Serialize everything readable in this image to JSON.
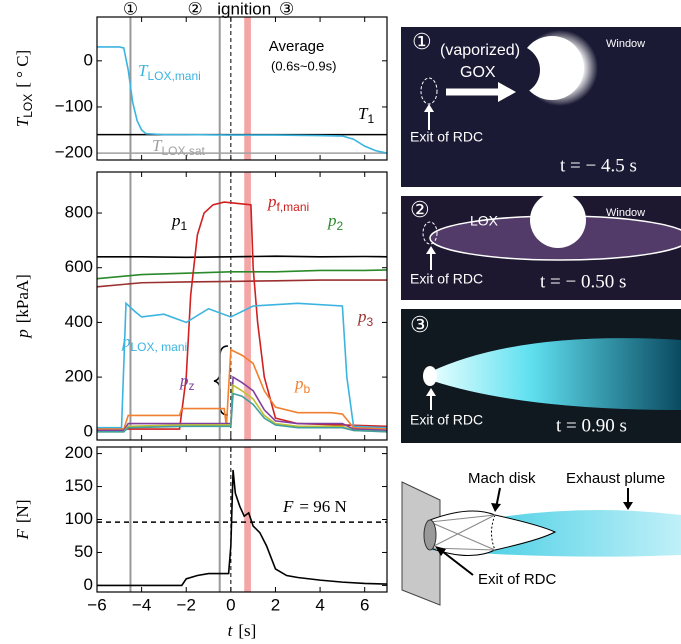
{
  "chart_data": [
    {
      "type": "line",
      "xlim": [
        -6,
        7
      ],
      "ylim": [
        -215,
        95
      ],
      "xticks": [
        {
          "value": -6,
          "label": "−6"
        },
        {
          "value": -4,
          "label": "−4"
        },
        {
          "value": -2,
          "label": "−2"
        },
        0,
        2,
        4,
        6
      ],
      "yticks": [
        0,
        {
          "value": -100,
          "label": "−100"
        },
        {
          "value": -200,
          "label": "−200"
        }
      ],
      "ylabel": {
        "base": "T",
        "sub": "LOX",
        "unit": "[ ° C]"
      },
      "series": [
        {
          "label": {
            "base": "T",
            "sub": "LOX,mani"
          },
          "color": "#3bb4e0",
          "x": [
            -6,
            -5,
            -4.8,
            -4.6,
            -4.4,
            -4.2,
            -4,
            -3.8,
            -3,
            -2,
            0,
            2,
            4,
            5,
            5.5,
            6,
            6.5,
            7
          ],
          "values": [
            30,
            30,
            28,
            -20,
            -90,
            -130,
            -150,
            -158,
            -160,
            -160,
            -161,
            -161,
            -162,
            -163,
            -170,
            -185,
            -195,
            -200
          ]
        }
      ],
      "hlines": [
        {
          "value": -160,
          "color": "#000000",
          "label": {
            "base": "T",
            "sub": "1"
          }
        },
        {
          "value": -200,
          "color": "#a0a0a0",
          "label": {
            "base": "T",
            "sub": "LOX,sat"
          }
        }
      ]
    },
    {
      "type": "line",
      "xlim": [
        -6,
        7
      ],
      "ylim": [
        -30,
        950
      ],
      "xticks": [
        {
          "value": -6,
          "label": "−6"
        },
        {
          "value": -4,
          "label": "−4"
        },
        {
          "value": -2,
          "label": "−2"
        },
        0,
        2,
        4,
        6
      ],
      "yticks": [
        0,
        200,
        400,
        600,
        800
      ],
      "ylabel": {
        "base": "p",
        "unit": "[kPaA]"
      },
      "series": [
        {
          "label": {
            "base": "p",
            "sub": "1"
          },
          "color": "#000000",
          "x": [
            -6,
            -4,
            -2,
            0,
            2,
            4,
            6,
            7
          ],
          "values": [
            640,
            640,
            638,
            640,
            642,
            640,
            641,
            640
          ]
        },
        {
          "label": {
            "base": "p",
            "sub": "2"
          },
          "color": "#2a8a2a",
          "x": [
            -6,
            -4,
            -2,
            0,
            2,
            4,
            6,
            7
          ],
          "values": [
            560,
            575,
            580,
            585,
            585,
            590,
            590,
            592
          ]
        },
        {
          "label": {
            "base": "p",
            "sub": "3"
          },
          "color": "#9b3030",
          "x": [
            -6,
            -4,
            -2,
            0,
            2,
            4,
            6,
            7
          ],
          "values": [
            530,
            545,
            548,
            550,
            552,
            555,
            555,
            555
          ]
        },
        {
          "label": {
            "base": "p",
            "sub": "f,mani"
          },
          "color": "#d02020",
          "x": [
            -6,
            -2.3,
            -2,
            -1.8,
            -1.5,
            -1.2,
            -0.8,
            -0.3,
            0.3,
            0.9,
            1,
            1.2,
            1.5,
            2,
            3,
            5,
            7
          ],
          "values": [
            10,
            10,
            200,
            500,
            720,
            800,
            830,
            840,
            835,
            830,
            600,
            400,
            200,
            50,
            30,
            25,
            20
          ]
        },
        {
          "label": {
            "base": "p",
            "sub": "LOX, mani"
          },
          "color": "#3bb4e0",
          "x": [
            -6,
            -4.9,
            -4.7,
            -4.3,
            -4,
            -3,
            -2,
            -1,
            0,
            1,
            3,
            5,
            5.2,
            5.5,
            7
          ],
          "values": [
            15,
            15,
            470,
            440,
            420,
            430,
            400,
            450,
            420,
            460,
            470,
            460,
            200,
            20,
            15
          ]
        },
        {
          "label": {
            "base": "p",
            "sub": "b"
          },
          "color": "#f08030",
          "x": [
            -6,
            -4.8,
            -4.6,
            -2.3,
            -2.2,
            -0.3,
            -0.2,
            0,
            0.5,
            1,
            1.5,
            2,
            3,
            4.5,
            5,
            5.5,
            7
          ],
          "values": [
            10,
            10,
            60,
            60,
            85,
            85,
            20,
            300,
            280,
            250,
            150,
            90,
            70,
            70,
            65,
            15,
            10
          ]
        },
        {
          "label": {
            "base": "p",
            "sub": "z"
          },
          "color": "#8040a0",
          "x": [
            -6,
            -4.8,
            -4.6,
            -2,
            0,
            0.1,
            0.5,
            1,
            1.5,
            2,
            3,
            5,
            5.5,
            7
          ],
          "values": [
            5,
            5,
            30,
            30,
            30,
            200,
            180,
            150,
            80,
            40,
            30,
            30,
            10,
            5
          ]
        },
        {
          "color": "#c0c030",
          "x": [
            -6,
            -4.8,
            -4.6,
            -2,
            0,
            0.1,
            0.5,
            1,
            1.5,
            2,
            3,
            5,
            5.5,
            7
          ],
          "values": [
            0,
            0,
            20,
            25,
            25,
            170,
            150,
            120,
            60,
            30,
            20,
            20,
            5,
            0
          ]
        },
        {
          "color": "#40a0a0",
          "x": [
            -6,
            -4.8,
            -4.6,
            -2,
            0,
            0.1,
            0.5,
            1,
            1.5,
            2,
            3,
            5,
            5.5,
            7
          ],
          "values": [
            0,
            0,
            15,
            20,
            20,
            140,
            130,
            100,
            50,
            25,
            15,
            15,
            5,
            0
          ]
        }
      ]
    },
    {
      "type": "line",
      "xlim": [
        -6,
        7
      ],
      "ylim": [
        -10,
        210
      ],
      "xticks": [
        {
          "value": -6,
          "label": "−6"
        },
        {
          "value": -4,
          "label": "−4"
        },
        {
          "value": -2,
          "label": "−2"
        },
        0,
        2,
        4,
        6
      ],
      "yticks": [
        0,
        50,
        100,
        150,
        200
      ],
      "ylabel": {
        "base": "F",
        "unit": "[N]"
      },
      "xlabel": {
        "base": "t",
        "unit": "[s]"
      },
      "series": [
        {
          "color": "#000000",
          "x": [
            -6,
            -2.2,
            -2,
            -1.5,
            -1,
            -0.5,
            -0.1,
            0,
            0.1,
            0.2,
            0.4,
            0.6,
            0.8,
            1,
            1.3,
            1.6,
            2,
            2.5,
            3,
            4,
            5,
            6,
            7
          ],
          "values": [
            0,
            0,
            10,
            15,
            18,
            18,
            18,
            60,
            175,
            140,
            120,
            105,
            110,
            90,
            80,
            60,
            25,
            15,
            12,
            8,
            5,
            3,
            2
          ]
        }
      ],
      "hlines": [
        {
          "value": 96,
          "color": "#000000",
          "dashed": true,
          "label": {
            "base": "F",
            "unit": "= 96 N"
          }
        }
      ]
    }
  ],
  "events": [
    {
      "label": "①",
      "x": -4.5
    },
    {
      "label": "②",
      "x": -0.5
    },
    {
      "label": "ignition",
      "x": 0
    },
    {
      "label": "③",
      "x": 0.9
    }
  ],
  "average": {
    "label": "Average",
    "sublabel": "(0.6s~0.9s)",
    "range": [
      0.6,
      0.9
    ]
  },
  "panels": [
    {
      "number": "①",
      "texts": [
        "(vaporized)",
        "GOX",
        "Window",
        "Exit of RDC"
      ],
      "time": "t = − 4.5 s"
    },
    {
      "number": "②",
      "texts": [
        "LOX",
        "Window",
        "Exit of RDC"
      ],
      "time": "t = − 0.50 s"
    },
    {
      "number": "③",
      "texts": [
        "Exit of RDC"
      ],
      "time": "t = 0.90 s"
    }
  ],
  "diagram": {
    "labels": [
      "Mach disk",
      "Exhaust plume",
      "Exit of RDC"
    ]
  }
}
